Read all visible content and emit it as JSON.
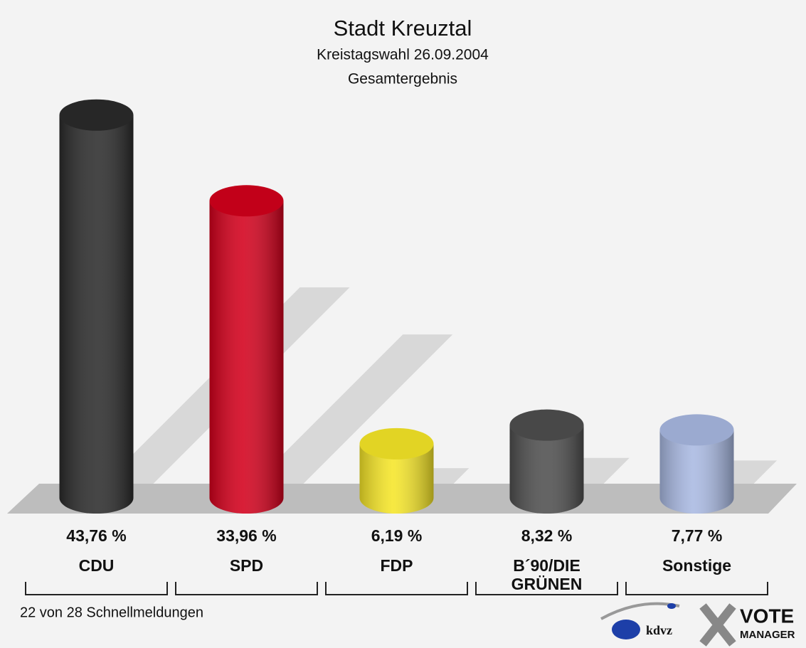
{
  "chart_data": {
    "type": "bar3d",
    "title": "Stadt Kreuztal",
    "subtitle": "Kreistagswahl 26.09.2004",
    "subtitle2": "Gesamtergebnis",
    "categories": [
      "CDU",
      "SPD",
      "FDP",
      "B´90/DIE GRÜNEN",
      "Sonstige"
    ],
    "values": [
      43.76,
      33.96,
      6.19,
      8.32,
      7.77
    ],
    "value_labels": [
      "43,76 %",
      "33,96 %",
      "6,19 %",
      "8,32 %",
      "7,77 %"
    ],
    "colors": [
      "#2b2b2b",
      "#d3001c",
      "#f6e628",
      "#4f4f4f",
      "#a9b9e2"
    ],
    "footer": "22 von 28 Schnellmeldungen",
    "logos": [
      "kdvz",
      "VOTE",
      "MANAGER"
    ]
  }
}
